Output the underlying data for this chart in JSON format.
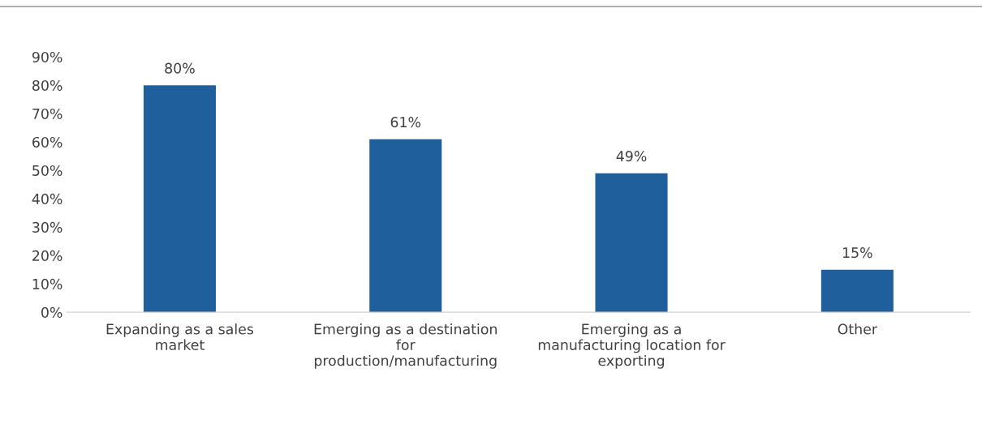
{
  "chart_data": {
    "type": "bar",
    "categories": [
      "Expanding as a sales\nmarket",
      "Emerging as a destination\nfor\nproduction/manufacturing",
      "Emerging as a\nmanufacturing location for\nexporting",
      "Other"
    ],
    "values": [
      80,
      61,
      49,
      15
    ],
    "value_labels": [
      "80%",
      "61%",
      "49%",
      "15%"
    ],
    "color": "#1f5f9b",
    "ylim": [
      0,
      90
    ],
    "yticks": [
      {
        "value": 0,
        "label": "0%"
      },
      {
        "value": 10,
        "label": "10%"
      },
      {
        "value": 20,
        "label": "20%"
      },
      {
        "value": 30,
        "label": "30%"
      },
      {
        "value": 40,
        "label": "40%"
      },
      {
        "value": 50,
        "label": "50%"
      },
      {
        "value": 60,
        "label": "60%"
      },
      {
        "value": 70,
        "label": "70%"
      },
      {
        "value": 80,
        "label": "80%"
      },
      {
        "value": 90,
        "label": "90%"
      }
    ],
    "grid": false,
    "legend": false
  }
}
